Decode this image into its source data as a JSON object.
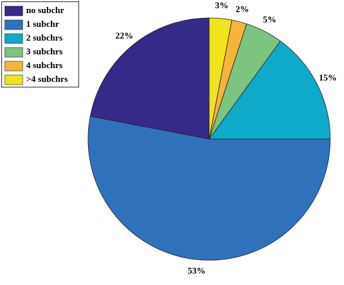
{
  "chart_data": {
    "type": "pie",
    "categories": [
      "no subchr",
      "1 subchr",
      "2 subchrs",
      "3 subchrs",
      "4 subchrs",
      ">4 subchrs"
    ],
    "values": [
      22,
      53,
      15,
      5,
      2,
      3
    ],
    "value_labels": [
      "22%",
      "53%",
      "15%",
      "5%",
      "2%",
      "3%"
    ],
    "colors": [
      "#352a87",
      "#2f72bb",
      "#0fa9c9",
      "#7cc47f",
      "#f5b53c",
      "#f0e41e"
    ],
    "legend": "upper left"
  }
}
